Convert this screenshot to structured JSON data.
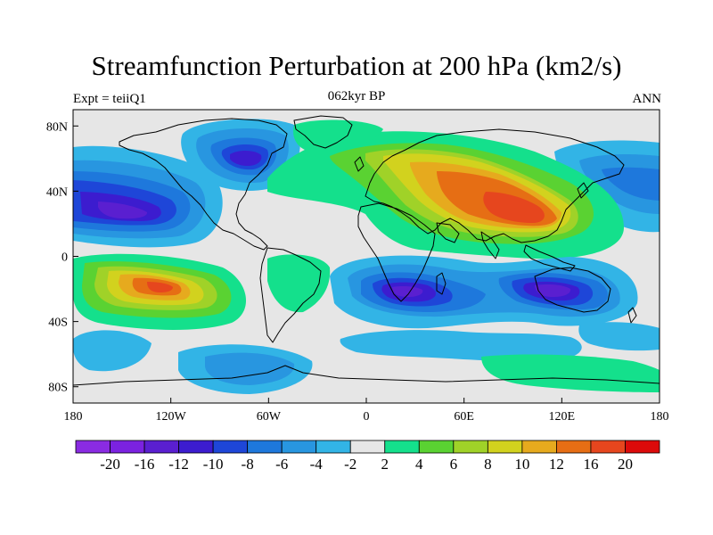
{
  "title": "Streamfunction Perturbation at 200 hPa (km2/s)",
  "left_label": "Expt = teiiQ1",
  "center_label": "062kyr BP",
  "right_label": "ANN",
  "map": {
    "lon_range": [
      -180,
      180
    ],
    "lat_range": [
      -90,
      90
    ],
    "lon_ticks": [
      "180",
      "120W",
      "60W",
      "0",
      "60E",
      "120E",
      "180"
    ],
    "lat_ticks": [
      "80N",
      "40N",
      "0",
      "40S",
      "80S"
    ],
    "lat_tick_values": [
      80,
      40,
      0,
      -40,
      -80
    ]
  },
  "colorbar": {
    "colors": [
      "#8a2be2",
      "#7b22e0",
      "#5a1fd0",
      "#3c1ccf",
      "#1e46d8",
      "#1e78dc",
      "#2896e0",
      "#32b4e6",
      "#e6e6e6",
      "#14e08c",
      "#5ad232",
      "#a0d228",
      "#d2d21e",
      "#e6aa1e",
      "#e66e14",
      "#e6461e",
      "#dc0a0a"
    ],
    "labels": [
      "-20",
      "-16",
      "-12",
      "-10",
      "-8",
      "-6",
      "-4",
      "-2",
      "2",
      "4",
      "6",
      "8",
      "10",
      "12",
      "16",
      "20"
    ]
  }
}
